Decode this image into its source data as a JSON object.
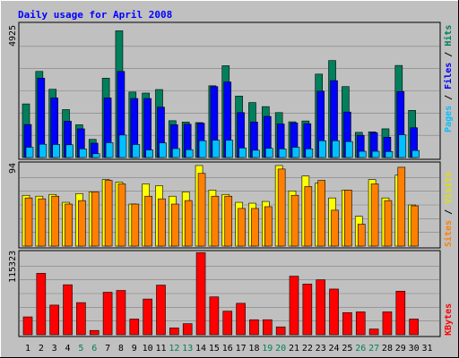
{
  "chart_data": [
    {
      "type": "bar",
      "title": "Daily usage for April 2008",
      "ylabel_max": "4925",
      "legend": [
        "Pages",
        "Files",
        "Hits"
      ],
      "colors": {
        "hits": "#00805c",
        "files": "#0000ff",
        "pages": "#00c0ff"
      },
      "categories": [
        "1",
        "2",
        "3",
        "4",
        "5",
        "6",
        "7",
        "8",
        "9",
        "10",
        "11",
        "12",
        "13",
        "14",
        "15",
        "16",
        "17",
        "18",
        "19",
        "20",
        "21",
        "22",
        "23",
        "24",
        "25",
        "26",
        "27",
        "28",
        "29",
        "30",
        "31"
      ],
      "weekend_days": [
        "5",
        "6",
        "12",
        "13",
        "19",
        "20",
        "26",
        "27"
      ],
      "ylim": [
        0,
        4925
      ],
      "series": [
        {
          "name": "Hits",
          "values": [
            1980,
            3180,
            2520,
            1770,
            1210,
            670,
            2930,
            4680,
            2420,
            2380,
            2510,
            1360,
            1310,
            1290,
            2650,
            3390,
            2270,
            2030,
            1880,
            1660,
            1320,
            1350,
            3080,
            3580,
            2620,
            930,
            950,
            1060,
            3400,
            1740,
            0
          ]
        },
        {
          "name": "Files",
          "values": [
            1220,
            2930,
            2200,
            1340,
            1060,
            530,
            2200,
            3180,
            2180,
            2180,
            1860,
            1210,
            1230,
            1270,
            2620,
            2790,
            1660,
            1310,
            1520,
            1240,
            1280,
            1250,
            2450,
            2840,
            1680,
            820,
            920,
            750,
            2440,
            1100,
            0
          ]
        },
        {
          "name": "Pages",
          "values": [
            380,
            490,
            480,
            470,
            320,
            140,
            550,
            830,
            480,
            280,
            540,
            330,
            290,
            620,
            640,
            640,
            350,
            270,
            340,
            320,
            380,
            320,
            620,
            620,
            590,
            230,
            230,
            220,
            840,
            260,
            0
          ]
        }
      ]
    },
    {
      "type": "bar",
      "ylabel_max": "94",
      "legend": [
        "Sites",
        "Visits"
      ],
      "colors": {
        "visits": "#ffff00",
        "sites": "#ff8000"
      },
      "categories": [
        "1",
        "2",
        "3",
        "4",
        "5",
        "6",
        "7",
        "8",
        "9",
        "10",
        "11",
        "12",
        "13",
        "14",
        "15",
        "16",
        "17",
        "18",
        "19",
        "20",
        "21",
        "22",
        "23",
        "24",
        "25",
        "26",
        "27",
        "28",
        "29",
        "30",
        "31"
      ],
      "ylim": [
        0,
        94
      ],
      "series": [
        {
          "name": "Visits",
          "values": [
            58,
            57,
            59,
            50,
            60,
            62,
            76,
            73,
            48,
            71,
            69,
            57,
            62,
            92,
            64,
            59,
            50,
            49,
            51,
            92,
            63,
            80,
            72,
            55,
            64,
            34,
            76,
            55,
            81,
            47,
            0
          ]
        },
        {
          "name": "Sites",
          "values": [
            55,
            54,
            57,
            48,
            52,
            62,
            75,
            71,
            48,
            57,
            54,
            48,
            52,
            83,
            57,
            57,
            43,
            43,
            45,
            88,
            58,
            68,
            75,
            41,
            64,
            25,
            71,
            52,
            90,
            46,
            0
          ]
        }
      ]
    },
    {
      "type": "bar",
      "ylabel_max": "115323",
      "legend": [
        "KBytes"
      ],
      "colors": {
        "kbytes": "#ff0000"
      },
      "categories": [
        "1",
        "2",
        "3",
        "4",
        "5",
        "6",
        "7",
        "8",
        "9",
        "10",
        "11",
        "12",
        "13",
        "14",
        "15",
        "16",
        "17",
        "18",
        "19",
        "20",
        "21",
        "22",
        "23",
        "24",
        "25",
        "26",
        "27",
        "28",
        "29",
        "30",
        "31"
      ],
      "ylim": [
        0,
        115323
      ],
      "series": [
        {
          "name": "KBytes",
          "values": [
            25000,
            86000,
            41500,
            70000,
            45000,
            6000,
            59500,
            62000,
            22000,
            50000,
            69500,
            9500,
            15500,
            115000,
            53000,
            33000,
            44000,
            21000,
            21000,
            11000,
            82000,
            71000,
            77000,
            64000,
            31000,
            32000,
            8000,
            32000,
            61000,
            22000,
            0
          ]
        }
      ]
    }
  ]
}
